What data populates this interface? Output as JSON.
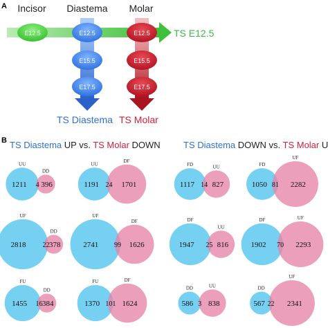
{
  "panel_a": {
    "label": "A",
    "incisor": "Incisor",
    "diastema": "Diastema",
    "molar": "Molar",
    "ts_e125": "TS E12.5",
    "ts_diastema": "TS Diastema",
    "ts_molar": "TS Molar",
    "stages": [
      "E12.5",
      "E15.5",
      "E17.5"
    ]
  },
  "panel_b": {
    "label": "B",
    "left_title": {
      "t1": "TS Diastema",
      "t2": " UP vs. ",
      "t3": "TS Molar",
      "t4": " DOWN"
    },
    "right_title": {
      "t1": "TS Diastema",
      "t2": " DOWN vs. ",
      "t3": "TS Molar",
      "t4": " UP"
    },
    "venns": [
      {
        "a_label": "UU",
        "b_label": "DD",
        "a_only": 1211,
        "overlap": 4,
        "b_only": 396
      },
      {
        "a_label": "UU",
        "b_label": "DF",
        "a_only": 1191,
        "overlap": 24,
        "b_only": 1701
      },
      {
        "a_label": "FD",
        "b_label": "UU",
        "a_only": 1117,
        "overlap": 14,
        "b_only": 827
      },
      {
        "a_label": "FD",
        "b_label": "UF",
        "a_only": 1050,
        "overlap": 81,
        "b_only": 2282
      },
      {
        "a_label": "UF",
        "b_label": "DD",
        "a_only": 2818,
        "overlap": 22,
        "b_only": 378
      },
      {
        "a_label": "UF",
        "b_label": "DF",
        "a_only": 2741,
        "overlap": 99,
        "b_only": 1626
      },
      {
        "a_label": "DF",
        "b_label": "UU",
        "a_only": 1947,
        "overlap": 25,
        "b_only": 816
      },
      {
        "a_label": "DF",
        "b_label": "UF",
        "a_only": 1902,
        "overlap": 70,
        "b_only": 2293
      },
      {
        "a_label": "FU",
        "b_label": "DD",
        "a_only": 1455,
        "overlap": 16,
        "b_only": 384
      },
      {
        "a_label": "FU",
        "b_label": "DF",
        "a_only": 1370,
        "overlap": 101,
        "b_only": 1624
      },
      {
        "a_label": "DD",
        "b_label": "UU",
        "a_only": 586,
        "overlap": 3,
        "b_only": 838
      },
      {
        "a_label": "DD",
        "b_label": "UF",
        "a_only": 567,
        "overlap": 22,
        "b_only": 2341
      }
    ]
  },
  "colors": {
    "green": "#4fd14a",
    "blue": "#3f86e8",
    "red": "#c8182a",
    "venn_a": "#5ec8f0",
    "venn_b": "#e684a8",
    "title_blue": "#2f6fd1",
    "title_red": "#d0203a",
    "label_green": "#3cb84a"
  }
}
